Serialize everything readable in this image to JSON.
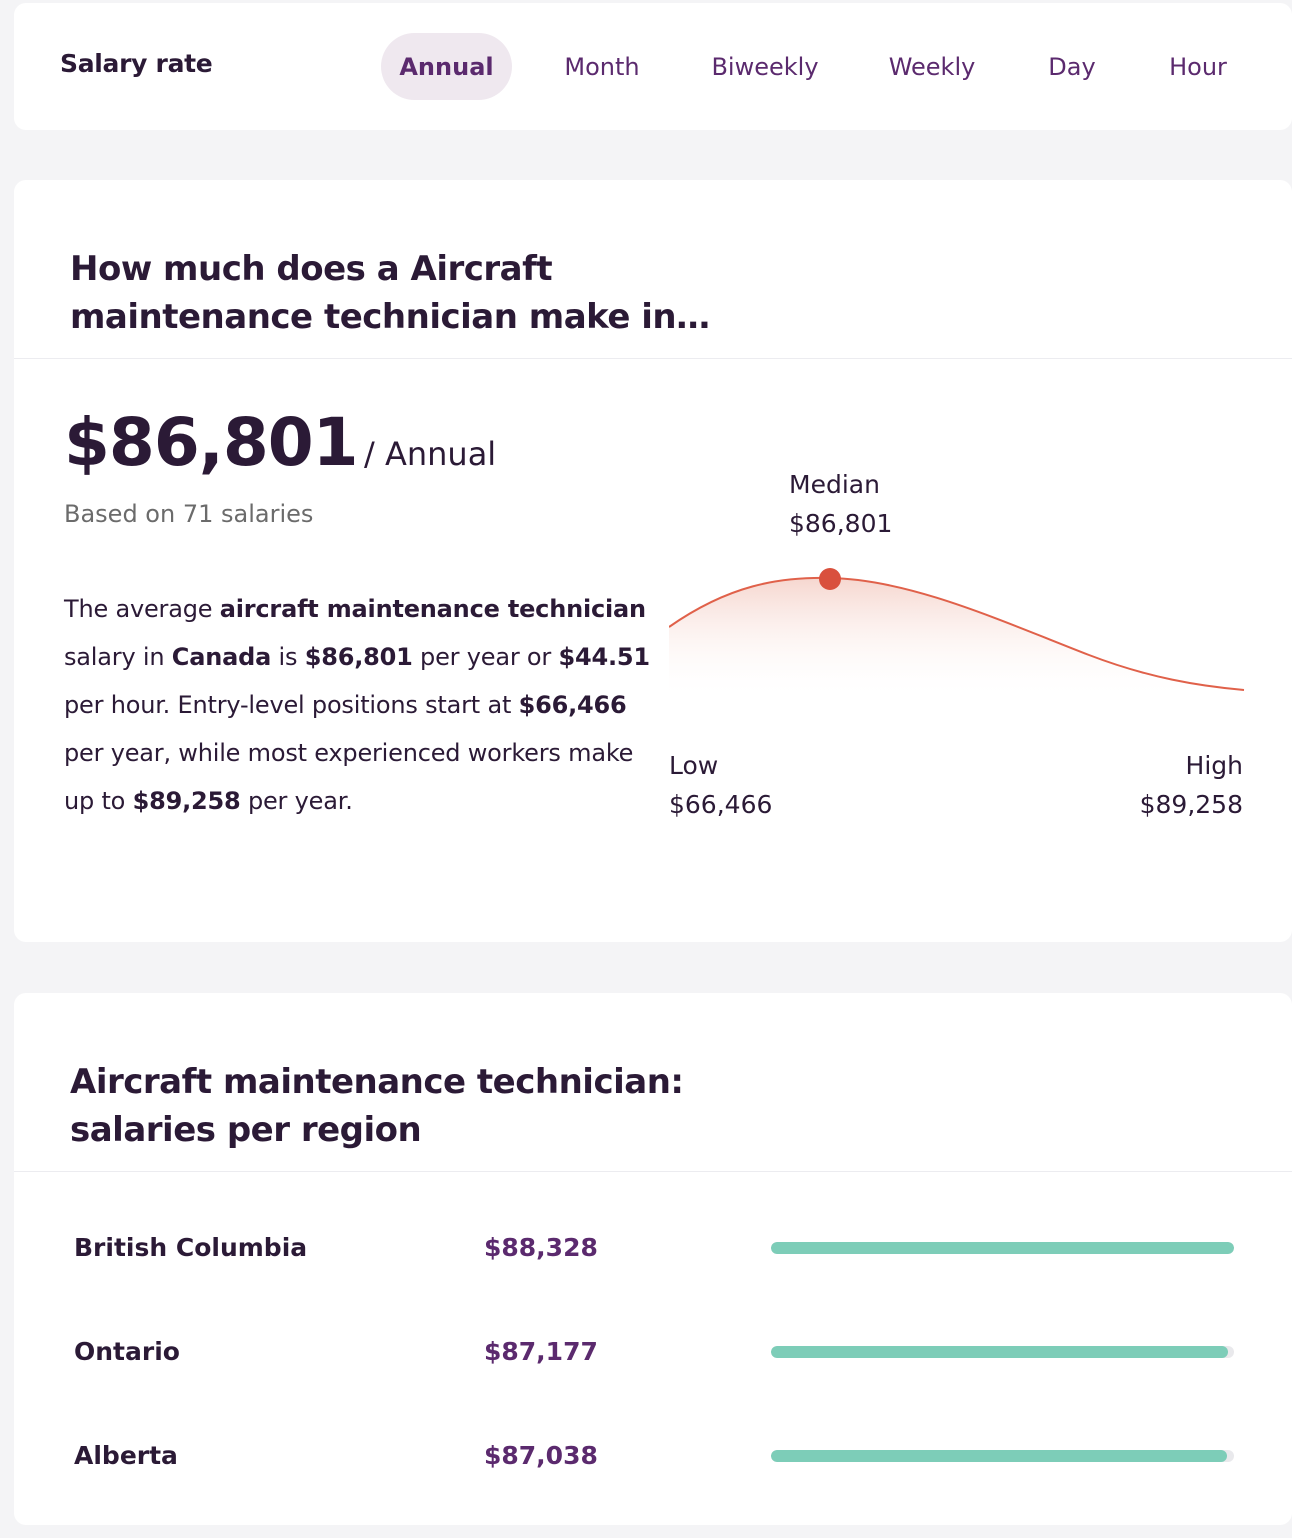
{
  "rate_selector": {
    "label": "Salary rate",
    "tabs": [
      {
        "label": "Annual",
        "active": true
      },
      {
        "label": "Month",
        "active": false
      },
      {
        "label": "Biweekly",
        "active": false
      },
      {
        "label": "Weekly",
        "active": false
      },
      {
        "label": "Day",
        "active": false
      },
      {
        "label": "Hour",
        "active": false
      }
    ]
  },
  "summary": {
    "title": "How much does a Aircraft maintenance technician make in…",
    "value": "$86,801",
    "per": "/ Annual",
    "based_on": "Based on 71 salaries",
    "description": {
      "t1": "The average ",
      "b1": "aircraft maintenance technician",
      "t2": " salary in ",
      "b2": "Canada",
      "t3": " is ",
      "b3": "$86,801",
      "t4": " per year or ",
      "b4": "$44.51",
      "t5": " per hour. Entry-level positions start at ",
      "b5": "$66,466",
      "t6": " per year, while most experienced workers make up to ",
      "b6": "$89,258",
      "t7": " per year."
    },
    "distribution": {
      "median_label": "Median",
      "median_value": "$86,801",
      "low_label": "Low",
      "low_value": "$66,466",
      "high_label": "High",
      "high_value": "$89,258",
      "curve_color": "#e0614a"
    }
  },
  "regions": {
    "title": "Aircraft maintenance technician: salaries per region",
    "bar_color": "#7dcdb8",
    "items": [
      {
        "name": "British Columbia",
        "value": "$88,328",
        "fill": 1.0
      },
      {
        "name": "Ontario",
        "value": "$87,177",
        "fill": 0.987
      },
      {
        "name": "Alberta",
        "value": "$87,038",
        "fill": 0.985
      }
    ]
  }
}
